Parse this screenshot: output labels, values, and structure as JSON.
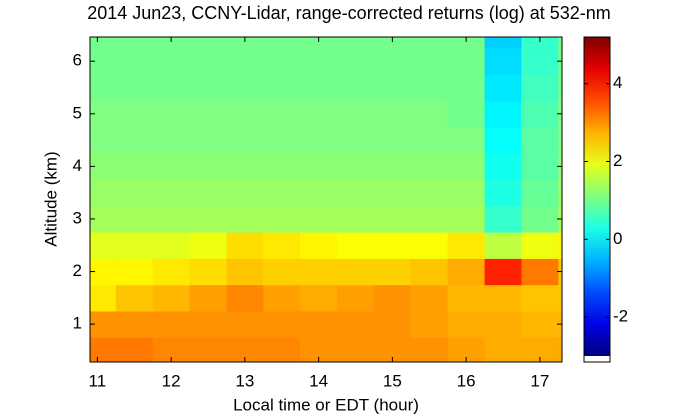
{
  "chart_data": {
    "type": "heatmap",
    "title": "2014 Jun23, CCNY-Lidar, range-corrected returns (log) at 532-nm",
    "x_label": "Local time or EDT (hour)",
    "y_label": "Altitude (km)",
    "x": [
      11,
      11.5,
      12,
      12.5,
      13,
      13.5,
      14,
      14.5,
      15,
      15.5,
      16,
      16.5,
      17,
      17.5
    ],
    "y": [
      0.5,
      1,
      1.5,
      2,
      2.5,
      3,
      3.5,
      4,
      4.5,
      5,
      5.5,
      6,
      6.5
    ],
    "values": [
      [
        3.2,
        3.2,
        3.1,
        3.1,
        3.1,
        3.1,
        3.0,
        3.0,
        3.0,
        3.0,
        2.9,
        2.8,
        2.8,
        2.8
      ],
      [
        3.0,
        3.0,
        3.0,
        3.0,
        3.0,
        3.0,
        3.0,
        3.0,
        3.0,
        2.9,
        2.8,
        2.8,
        2.7,
        2.7
      ],
      [
        2.3,
        2.6,
        2.7,
        2.9,
        3.1,
        2.9,
        2.8,
        2.9,
        3.0,
        2.9,
        2.7,
        2.7,
        2.6,
        2.6
      ],
      [
        2.2,
        2.2,
        2.3,
        2.4,
        2.6,
        2.5,
        2.5,
        2.5,
        2.5,
        2.6,
        2.8,
        3.9,
        3.2,
        2.6
      ],
      [
        1.9,
        1.9,
        1.9,
        2.0,
        2.4,
        2.3,
        2.2,
        2.1,
        2.1,
        2.1,
        2.3,
        1.6,
        2.0,
        2.2
      ],
      [
        1.4,
        1.4,
        1.4,
        1.4,
        1.4,
        1.4,
        1.4,
        1.4,
        1.4,
        1.4,
        1.4,
        0.5,
        1.0,
        1.4
      ],
      [
        1.3,
        1.3,
        1.3,
        1.3,
        1.3,
        1.3,
        1.3,
        1.3,
        1.3,
        1.3,
        1.3,
        0.3,
        0.9,
        1.3
      ],
      [
        1.2,
        1.2,
        1.2,
        1.2,
        1.2,
        1.2,
        1.2,
        1.2,
        1.2,
        1.2,
        1.2,
        0.2,
        0.8,
        1.2
      ],
      [
        1.1,
        1.1,
        1.1,
        1.1,
        1.1,
        1.1,
        1.1,
        1.1,
        1.1,
        1.1,
        1.1,
        0.1,
        0.8,
        1.1
      ],
      [
        1.1,
        1.1,
        1.1,
        1.1,
        1.1,
        1.1,
        1.1,
        1.1,
        1.1,
        1.1,
        1.0,
        0.0,
        0.7,
        1.1
      ],
      [
        1.0,
        1.0,
        1.0,
        1.0,
        1.0,
        1.0,
        1.0,
        1.0,
        1.0,
        1.0,
        1.0,
        -0.1,
        0.6,
        1.0
      ],
      [
        1.0,
        1.0,
        1.0,
        1.0,
        1.0,
        1.0,
        1.0,
        1.0,
        1.0,
        1.0,
        1.0,
        -0.2,
        0.5,
        1.0
      ],
      [
        1.0,
        1.0,
        1.0,
        1.0,
        1.0,
        1.0,
        1.0,
        1.0,
        1.0,
        1.0,
        1.0,
        -0.3,
        0.5,
        1.0
      ]
    ],
    "xlim": [
      10.9,
      17.3
    ],
    "ylim": [
      0.28,
      6.46
    ],
    "xticks": [
      11,
      12,
      13,
      14,
      15,
      16,
      17
    ],
    "yticks": [
      1,
      2,
      3,
      4,
      5,
      6
    ],
    "zlim": [
      -3.0,
      5.2
    ],
    "zticks": [
      -2,
      0,
      2,
      4
    ],
    "colormap": "jet"
  }
}
